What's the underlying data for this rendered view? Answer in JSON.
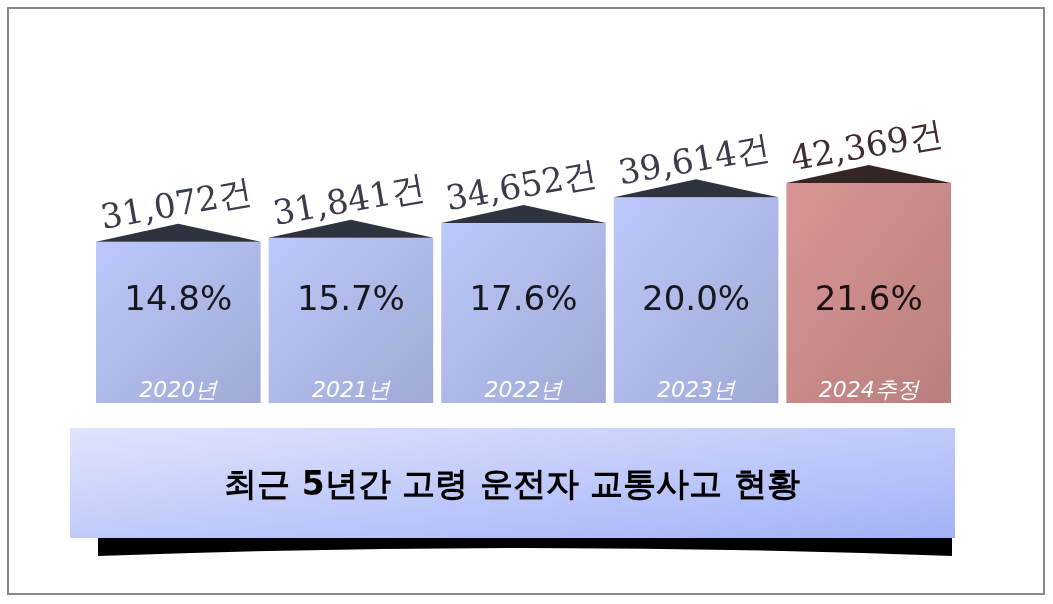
{
  "chart_data": {
    "type": "bar",
    "title": "최근 5년간 고령 운전자 교통사고 현황",
    "categories": [
      "2020년",
      "2021년",
      "2022년",
      "2023년",
      "2024추정"
    ],
    "values": [
      31072,
      31841,
      34652,
      39614,
      42369
    ],
    "value_labels": [
      "31,072건",
      "31,841건",
      "34,652건",
      "39,614건",
      "42,369건"
    ],
    "colors": [
      "#bcc8fa",
      "#bcc8fa",
      "#bcc8fa",
      "#bcc8fa",
      "#d99594"
    ],
    "annotations": [
      "14.8%",
      "15.7%",
      "17.6%",
      "20.0%",
      "21.6%"
    ]
  }
}
